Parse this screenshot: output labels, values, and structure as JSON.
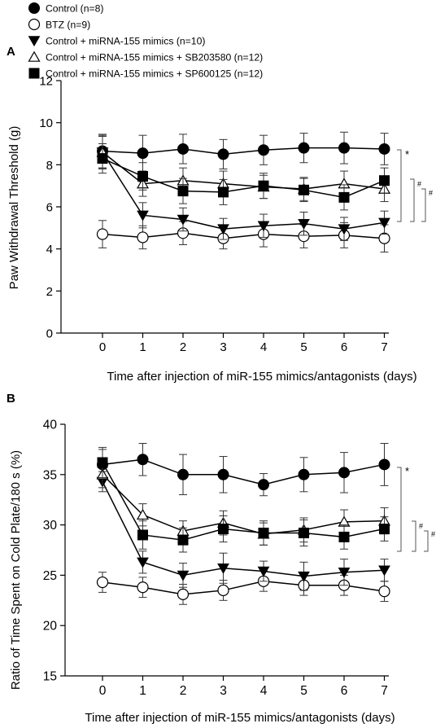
{
  "legend": [
    {
      "marker": "filled-circle",
      "label": "Control (n=8)"
    },
    {
      "marker": "open-circle",
      "label": "BTZ (n=9)"
    },
    {
      "marker": "filled-triangle-down",
      "label": "Control + miRNA-155 mimics (n=10)"
    },
    {
      "marker": "open-triangle-up",
      "label": "Control + miRNA-155 mimics + SB203580 (n=12)"
    },
    {
      "marker": "filled-square",
      "label": "Control + miRNA-155 mimics + SP600125 (n=12)"
    }
  ],
  "chart_data": [
    {
      "panel": "A",
      "type": "line",
      "xlabel": "Time after injection of miR-155 mimics/antagonists (days)",
      "ylabel": "Paw Withdrawal Threshold (g)",
      "x": [
        0,
        1,
        2,
        3,
        4,
        5,
        6,
        7
      ],
      "xticks": [
        "0",
        "1",
        "2",
        "3",
        "4",
        "5",
        "6",
        "7"
      ],
      "ylim": [
        0,
        12
      ],
      "yticks": [
        "0",
        "2",
        "4",
        "6",
        "8",
        "10",
        "12"
      ],
      "ytick_values": [
        0,
        2,
        4,
        6,
        8,
        10,
        12
      ],
      "series": [
        {
          "name": "Control (n=8)",
          "marker": "filled-circle",
          "values": [
            8.65,
            8.55,
            8.75,
            8.5,
            8.7,
            8.8,
            8.8,
            8.75
          ],
          "err": [
            0.8,
            0.85,
            0.7,
            0.7,
            0.7,
            0.7,
            0.75,
            0.75
          ]
        },
        {
          "name": "BTZ (n=9)",
          "marker": "open-circle",
          "values": [
            4.7,
            4.55,
            4.75,
            4.5,
            4.7,
            4.6,
            4.65,
            4.5
          ],
          "err": [
            0.65,
            0.55,
            0.55,
            0.5,
            0.6,
            0.55,
            0.6,
            0.65
          ]
        },
        {
          "name": "Control + miRNA-155 mimics (n=10)",
          "marker": "filled-triangle-down",
          "values": [
            8.6,
            5.6,
            5.4,
            4.95,
            5.1,
            5.2,
            4.95,
            5.25
          ],
          "err": [
            0.8,
            0.6,
            0.55,
            0.5,
            0.55,
            0.55,
            0.55,
            0.55
          ]
        },
        {
          "name": "Control + miRNA-155 mimics + SB203580 (n=12)",
          "marker": "open-triangle-up",
          "values": [
            8.6,
            7.1,
            7.25,
            7.1,
            6.95,
            6.85,
            7.1,
            6.85
          ],
          "err": [
            0.75,
            0.6,
            0.6,
            0.6,
            0.55,
            0.55,
            0.6,
            0.6
          ]
        },
        {
          "name": "Control + miRNA-155 mimics + SP600125 (n=12)",
          "marker": "filled-square",
          "values": [
            8.3,
            7.45,
            6.75,
            6.7,
            7.0,
            6.8,
            6.45,
            7.25
          ],
          "err": [
            0.7,
            0.65,
            0.6,
            0.6,
            0.6,
            0.55,
            0.6,
            0.6
          ]
        }
      ],
      "annotations": [
        "*",
        "#",
        "#"
      ]
    },
    {
      "panel": "B",
      "type": "line",
      "xlabel": "Time after injection of miR-155 mimics/antagonists (days)",
      "ylabel": "Ratio of Time Spent on Cold Plate/180 s (%)",
      "x": [
        0,
        1,
        2,
        3,
        4,
        5,
        6,
        7
      ],
      "xticks": [
        "0",
        "1",
        "2",
        "3",
        "4",
        "5",
        "6",
        "7"
      ],
      "ylim": [
        15,
        40
      ],
      "yticks": [
        "15",
        "20",
        "25",
        "30",
        "35",
        "40"
      ],
      "ytick_values": [
        15,
        20,
        25,
        30,
        35,
        40
      ],
      "series": [
        {
          "name": "Control (n=8)",
          "marker": "filled-circle",
          "values": [
            36.0,
            36.5,
            35.0,
            35.0,
            34.0,
            35.0,
            35.2,
            36.0
          ],
          "err": [
            1.5,
            1.6,
            2.0,
            1.8,
            1.1,
            1.7,
            2.0,
            2.1
          ]
        },
        {
          "name": "BTZ (n=9)",
          "marker": "open-circle",
          "values": [
            24.3,
            23.8,
            23.1,
            23.5,
            24.4,
            24.0,
            24.0,
            23.4
          ],
          "err": [
            1.0,
            1.0,
            1.0,
            1.0,
            1.0,
            1.0,
            1.0,
            1.0
          ]
        },
        {
          "name": "Control + miRNA-155 mimics (n=10)",
          "marker": "filled-triangle-down",
          "values": [
            34.3,
            26.3,
            25.0,
            25.7,
            25.4,
            24.9,
            25.3,
            25.5
          ],
          "err": [
            1.0,
            1.1,
            1.2,
            1.5,
            1.0,
            1.4,
            1.3,
            1.1
          ]
        },
        {
          "name": "Control + miRNA-155 mimics + SB203580 (n=12)",
          "marker": "open-triangle-up",
          "values": [
            35.0,
            31.0,
            29.4,
            30.2,
            29.1,
            29.5,
            30.3,
            30.4
          ],
          "err": [
            1.3,
            1.1,
            1.0,
            1.2,
            1.1,
            1.2,
            1.2,
            1.3
          ]
        },
        {
          "name": "Control + miRNA-155 mimics + SP600125 (n=12)",
          "marker": "filled-square",
          "values": [
            36.2,
            29.0,
            28.5,
            29.6,
            29.2,
            29.2,
            28.8,
            29.6
          ],
          "err": [
            1.5,
            1.4,
            1.2,
            1.3,
            1.2,
            1.3,
            1.2,
            1.2
          ]
        }
      ],
      "annotations": [
        "*",
        "#",
        "#"
      ]
    }
  ]
}
